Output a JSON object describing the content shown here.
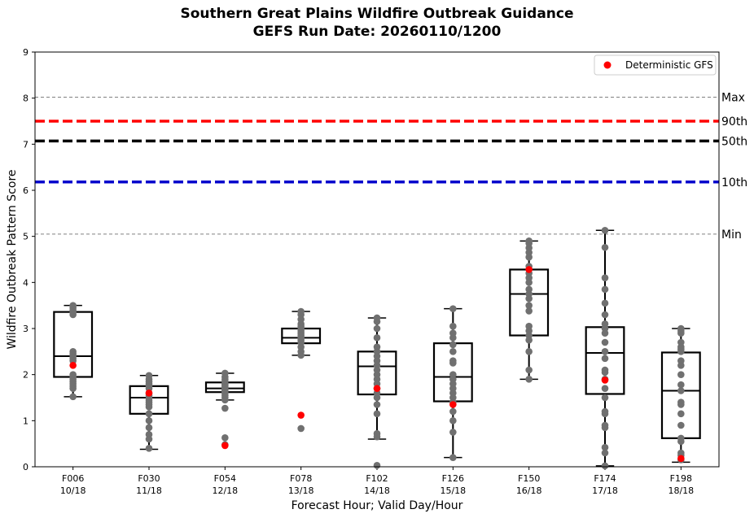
{
  "chart_data": {
    "type": "box",
    "title": "Southern Great Plains Wildfire Outbreak Guidance",
    "subtitle": "GEFS Run Date: 20260110/1200",
    "xlabel": "Forecast Hour; Valid Day/Hour",
    "ylabel": "Wildfire Outbreak Pattern Score",
    "ylim": [
      0,
      9
    ],
    "yticks": [
      "0",
      "1",
      "2",
      "3",
      "4",
      "5",
      "6",
      "7",
      "8",
      "9"
    ],
    "legend": {
      "label": "Deterministic GFS",
      "placement": "top-right"
    },
    "reference_lines": [
      {
        "label": "Max",
        "value": 8.02,
        "color": "#808080",
        "style": "dashed-thin"
      },
      {
        "label": "90th",
        "value": 7.5,
        "color": "#ff0000",
        "style": "dashed-thick"
      },
      {
        "label": "50th",
        "value": 7.07,
        "color": "#000000",
        "style": "dashed-thick"
      },
      {
        "label": "10th",
        "value": 6.18,
        "color": "#0000cc",
        "style": "dashed-thick"
      },
      {
        "label": "Min",
        "value": 5.05,
        "color": "#808080",
        "style": "dashed-thin"
      }
    ],
    "categories": [
      {
        "hour": "F006",
        "valid": "10/18",
        "whisker_low": 1.52,
        "q1": 1.95,
        "median": 2.4,
        "q3": 3.36,
        "whisker_high": 3.5,
        "deterministic": 2.2,
        "members": [
          3.5,
          3.45,
          3.4,
          3.35,
          3.3,
          2.5,
          2.45,
          2.4,
          2.35,
          2.3,
          2.0,
          1.95,
          1.9,
          1.85,
          1.8,
          1.75,
          1.7,
          1.52
        ]
      },
      {
        "hour": "F030",
        "valid": "11/18",
        "whisker_low": 0.38,
        "q1": 1.15,
        "median": 1.5,
        "q3": 1.75,
        "whisker_high": 1.98,
        "deterministic": 1.6,
        "members": [
          1.98,
          1.9,
          1.85,
          1.8,
          1.75,
          1.7,
          1.6,
          1.55,
          1.5,
          1.45,
          1.4,
          1.35,
          1.3,
          1.15,
          1.0,
          0.85,
          0.7,
          0.6,
          0.4
        ]
      },
      {
        "hour": "F054",
        "valid": "12/18",
        "whisker_low": 1.45,
        "q1": 1.62,
        "median": 1.7,
        "q3": 1.83,
        "whisker_high": 2.03,
        "deterministic": 0.46,
        "members": [
          2.03,
          1.95,
          1.9,
          1.85,
          1.8,
          1.78,
          1.75,
          1.72,
          1.7,
          1.68,
          1.65,
          1.62,
          1.6,
          1.55,
          1.5,
          1.45,
          1.27,
          0.63,
          0.48
        ]
      },
      {
        "hour": "F078",
        "valid": "13/18",
        "whisker_low": 2.42,
        "q1": 2.68,
        "median": 2.8,
        "q3": 3.0,
        "whisker_high": 3.37,
        "deterministic": 1.12,
        "members": [
          3.37,
          3.3,
          3.2,
          3.1,
          3.05,
          3.0,
          2.95,
          2.9,
          2.85,
          2.8,
          2.75,
          2.7,
          2.6,
          2.5,
          2.42,
          0.83
        ]
      },
      {
        "hour": "F102",
        "valid": "14/18",
        "whisker_low": 0.6,
        "q1": 1.57,
        "median": 2.18,
        "q3": 2.5,
        "whisker_high": 3.23,
        "deterministic": 1.7,
        "members": [
          3.23,
          3.15,
          3.0,
          2.8,
          2.6,
          2.5,
          2.4,
          2.3,
          2.2,
          2.1,
          2.0,
          1.9,
          1.8,
          1.7,
          1.6,
          1.5,
          1.35,
          1.15,
          0.72,
          0.65,
          0.03
        ]
      },
      {
        "hour": "F126",
        "valid": "15/18",
        "whisker_low": 0.2,
        "q1": 1.42,
        "median": 1.95,
        "q3": 2.68,
        "whisker_high": 3.43,
        "deterministic": 1.35,
        "members": [
          3.43,
          3.05,
          2.9,
          2.8,
          2.65,
          2.5,
          2.3,
          2.25,
          2.0,
          1.9,
          1.8,
          1.7,
          1.6,
          1.5,
          1.4,
          1.2,
          1.0,
          0.75,
          0.2
        ]
      },
      {
        "hour": "F150",
        "valid": "16/18",
        "whisker_low": 1.9,
        "q1": 2.85,
        "median": 3.75,
        "q3": 4.28,
        "whisker_high": 4.9,
        "deterministic": 4.28,
        "members": [
          4.9,
          4.85,
          4.75,
          4.65,
          4.55,
          4.35,
          4.2,
          4.1,
          4.0,
          3.85,
          3.75,
          3.65,
          3.5,
          3.38,
          3.05,
          2.95,
          2.85,
          2.75,
          2.5,
          2.1,
          1.9
        ]
      },
      {
        "hour": "F174",
        "valid": "17/18",
        "whisker_low": 0.02,
        "q1": 1.58,
        "median": 2.47,
        "q3": 3.03,
        "whisker_high": 5.13,
        "deterministic": 1.88,
        "members": [
          5.13,
          4.76,
          4.1,
          3.85,
          3.55,
          3.3,
          3.1,
          3.0,
          2.9,
          2.7,
          2.5,
          2.35,
          2.1,
          2.05,
          1.9,
          1.7,
          1.5,
          1.2,
          1.15,
          0.9,
          0.85,
          0.42,
          0.3,
          0.02
        ]
      },
      {
        "hour": "F198",
        "valid": "18/18",
        "whisker_low": 0.1,
        "q1": 0.62,
        "median": 1.65,
        "q3": 2.48,
        "whisker_high": 3.0,
        "deterministic": 0.18,
        "members": [
          3.0,
          2.95,
          2.9,
          2.7,
          2.6,
          2.55,
          2.5,
          2.3,
          2.2,
          2.0,
          1.78,
          1.65,
          1.4,
          1.35,
          1.15,
          0.9,
          0.62,
          0.55,
          0.3,
          0.25,
          0.15
        ]
      }
    ]
  },
  "colors": {
    "member": "#707070",
    "deterministic": "#ff0000",
    "box": "#000000"
  }
}
